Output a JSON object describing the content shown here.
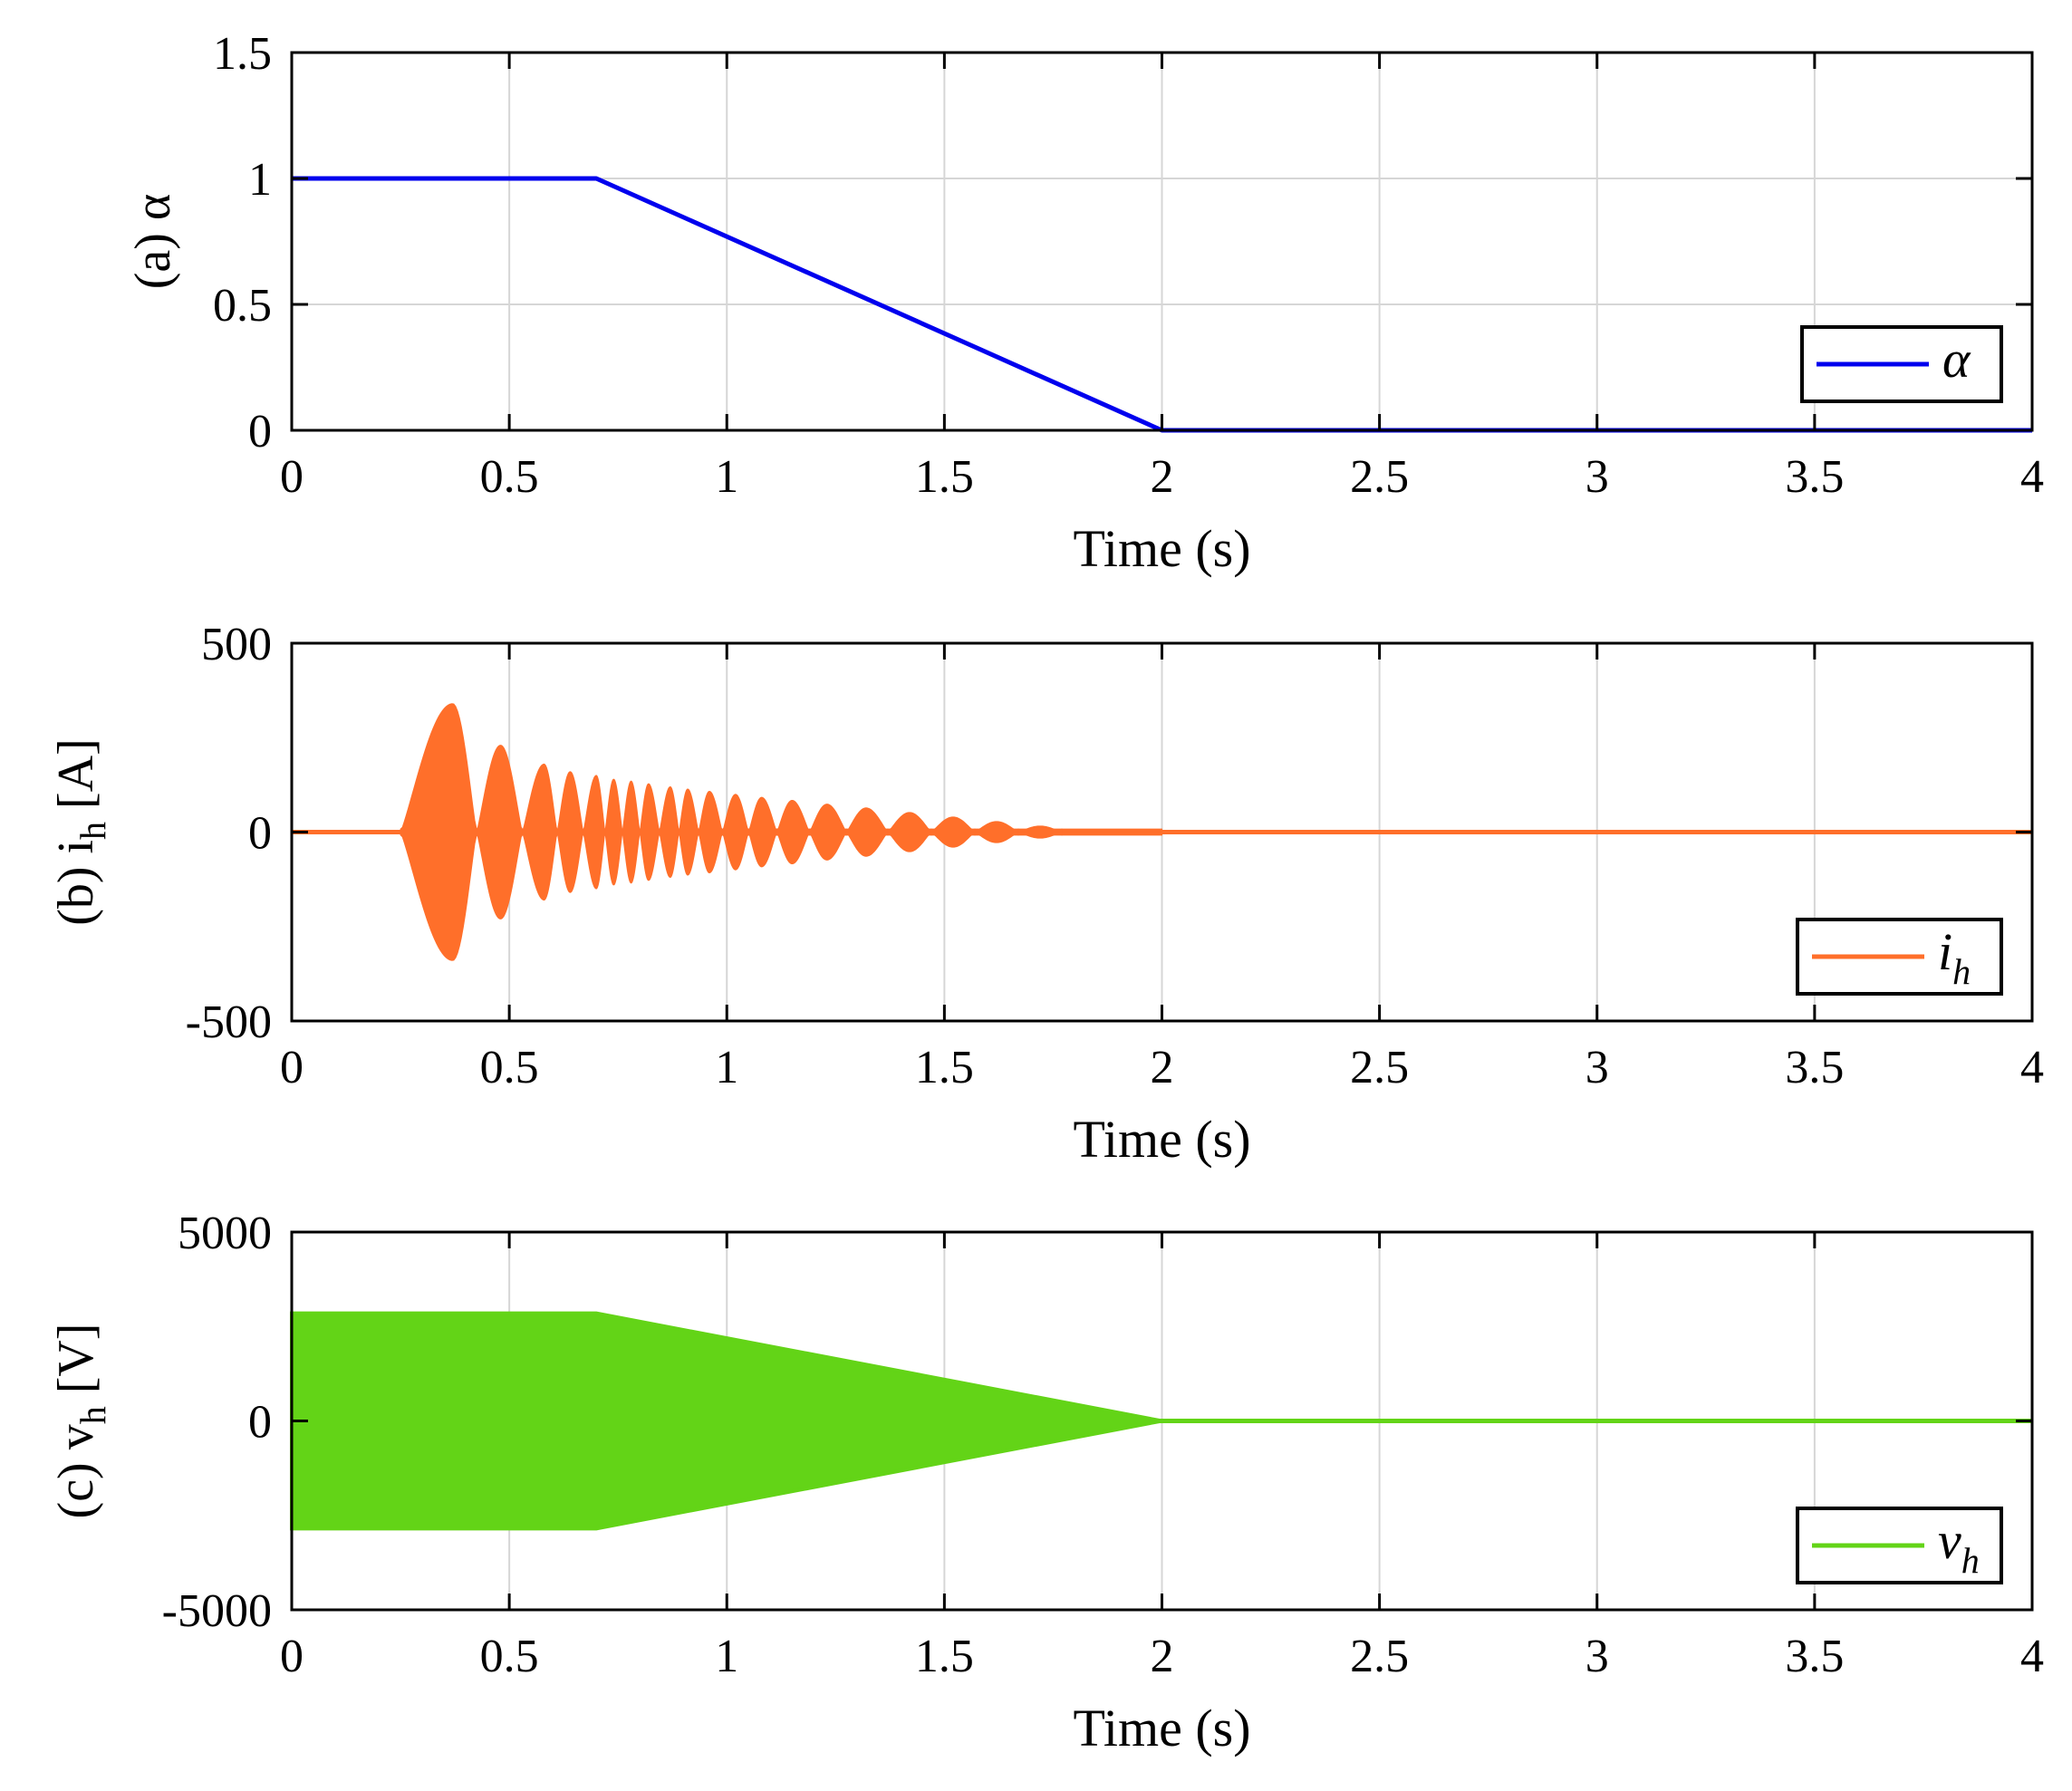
{
  "chart_data": [
    {
      "id": "a",
      "type": "line",
      "ylabel": "(a) α",
      "xlabel": "Time (s)",
      "xlim": [
        0,
        4
      ],
      "ylim": [
        0,
        1.5
      ],
      "xticks": [
        0,
        0.5,
        1,
        1.5,
        2,
        2.5,
        3,
        3.5,
        4
      ],
      "xtick_labels": [
        "0",
        "0.5",
        "1",
        "1.5",
        "2",
        "2.5",
        "3",
        "3.5",
        "4"
      ],
      "yticks": [
        0,
        0.5,
        1,
        1.5
      ],
      "ytick_labels": [
        "0",
        "0.5",
        "1",
        "1.5"
      ],
      "grid": true,
      "legend_position": "bottom-right",
      "series": [
        {
          "name": "α",
          "color": "#0000ee",
          "x": [
            0,
            0.7,
            2.0,
            4.0
          ],
          "y": [
            1,
            1,
            0,
            0
          ]
        }
      ]
    },
    {
      "id": "b",
      "type": "line",
      "ylabel": "(b) i",
      "ylabel_sub": "h",
      "ylabel_suffix": " [A]",
      "xlabel": "Time (s)",
      "xlim": [
        0,
        4
      ],
      "ylim": [
        -500,
        500
      ],
      "xticks": [
        0,
        0.5,
        1,
        1.5,
        2,
        2.5,
        3,
        3.5,
        4
      ],
      "xtick_labels": [
        "0",
        "0.5",
        "1",
        "1.5",
        "2",
        "2.5",
        "3",
        "3.5",
        "4"
      ],
      "yticks": [
        -500,
        0,
        500
      ],
      "ytick_labels": [
        "-500",
        "0",
        "500"
      ],
      "grid": true,
      "legend_position": "bottom-right",
      "series": [
        {
          "name": "i",
          "name_sub": "h",
          "color": "#ff6f2a",
          "signal": "beating oscillation, envelope peaks",
          "envelope_peaks_t": [
            0.37,
            0.48,
            0.58,
            0.64,
            0.7,
            0.74,
            0.78,
            0.82,
            0.87,
            0.91,
            0.96,
            1.02,
            1.08,
            1.15,
            1.23,
            1.32,
            1.42,
            1.52,
            1.62,
            1.72,
            1.82
          ],
          "envelope_peaks_amp": [
            340,
            230,
            180,
            160,
            150,
            140,
            135,
            128,
            120,
            114,
            108,
            100,
            92,
            84,
            74,
            64,
            52,
            40,
            28,
            16,
            6
          ],
          "onset_t": 0.25,
          "end_t": 2.0
        }
      ]
    },
    {
      "id": "c",
      "type": "area",
      "ylabel": "(c) v",
      "ylabel_sub": "h",
      "ylabel_suffix": " [V]",
      "xlabel": "Time (s)",
      "xlim": [
        0,
        4
      ],
      "ylim": [
        -5000,
        5000
      ],
      "xticks": [
        0,
        0.5,
        1,
        1.5,
        2,
        2.5,
        3,
        3.5,
        4
      ],
      "xtick_labels": [
        "0",
        "0.5",
        "1",
        "1.5",
        "2",
        "2.5",
        "3",
        "3.5",
        "4"
      ],
      "yticks": [
        -5000,
        0,
        5000
      ],
      "ytick_labels": [
        "-5000",
        "0",
        "5000"
      ],
      "grid": true,
      "legend_position": "bottom-right",
      "series": [
        {
          "name": "v",
          "name_sub": "h",
          "color": "#63d417",
          "envelope_t": [
            0,
            0.7,
            2.0,
            4.0
          ],
          "envelope_amp": [
            2850,
            2850,
            0,
            0
          ]
        }
      ]
    }
  ]
}
